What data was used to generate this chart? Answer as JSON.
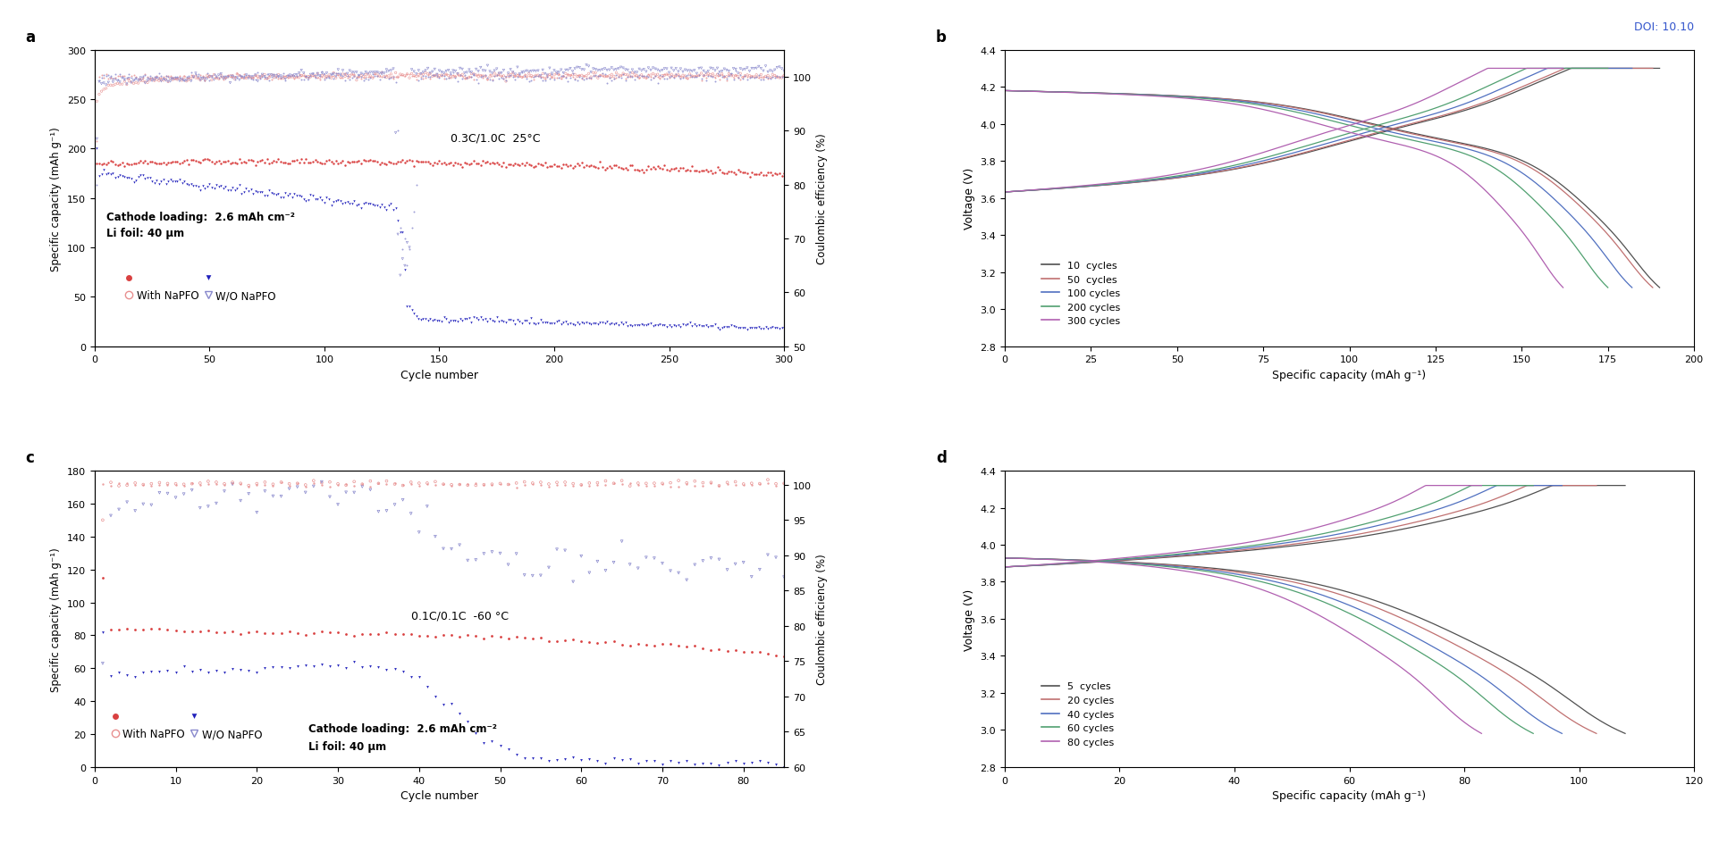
{
  "panel_a": {
    "title_label": "a",
    "xlabel": "Cycle number",
    "ylabel_left": "Specific capacity (mAh g⁻¹)",
    "ylabel_right": "Coulombic efficiency (%)",
    "xlim": [
      0,
      300
    ],
    "ylim_left": [
      0,
      300
    ],
    "ylim_right": [
      50,
      105
    ],
    "annotation": "0.3C/1.0C  25°C",
    "text1": "Cathode loading:  2.6 mAh cm⁻²",
    "text2": "Li foil: 40 μm",
    "colors": {
      "with_dis": "#d94040",
      "with_chg": "#e89090",
      "wo_dis": "#2020bb",
      "wo_chg": "#8888cc",
      "ce_with": "#e89090",
      "ce_wo": "#8888cc"
    }
  },
  "panel_b": {
    "title_label": "b",
    "xlabel": "Specific capacity (mAh g⁻¹)",
    "ylabel": "Voltage (V)",
    "xlim": [
      0,
      200
    ],
    "ylim": [
      2.8,
      4.4
    ],
    "colors": [
      "#505050",
      "#c07070",
      "#5070c0",
      "#50a070",
      "#b060b0"
    ],
    "legend_labels": [
      "10  cycles",
      "50  cycles",
      "100 cycles",
      "200 cycles",
      "300 cycles"
    ],
    "cap_max": [
      190,
      188,
      182,
      175,
      162
    ]
  },
  "panel_c": {
    "title_label": "c",
    "xlabel": "Cycle number",
    "ylabel_left": "Specific capacity (mAh g⁻¹)",
    "ylabel_right": "Coulombic efficiency (%)",
    "xlim": [
      0,
      85
    ],
    "ylim_left": [
      0,
      180
    ],
    "ylim_right": [
      60,
      102
    ],
    "annotation": "0.1C/0.1C  -60 °C",
    "text1": "Cathode loading:  2.6 mAh cm⁻²",
    "text2": "Li foil: 40 μm",
    "colors": {
      "with_dis": "#d94040",
      "with_chg": "#e89090",
      "wo_dis": "#2020bb",
      "wo_chg": "#8888cc",
      "ce_with": "#e89090",
      "ce_wo": "#8888cc"
    }
  },
  "panel_d": {
    "title_label": "d",
    "xlabel": "Specific capacity (mAh g⁻¹)",
    "ylabel": "Voltage (V)",
    "xlim": [
      0,
      120
    ],
    "ylim": [
      2.8,
      4.4
    ],
    "colors": [
      "#505050",
      "#c07070",
      "#5070c0",
      "#50a070",
      "#b060b0"
    ],
    "legend_labels": [
      "5  cycles",
      "20 cycles",
      "40 cycles",
      "60 cycles",
      "80 cycles"
    ],
    "cap_max": [
      108,
      103,
      97,
      92,
      83
    ]
  },
  "doi_text": "DOI: 10.10"
}
